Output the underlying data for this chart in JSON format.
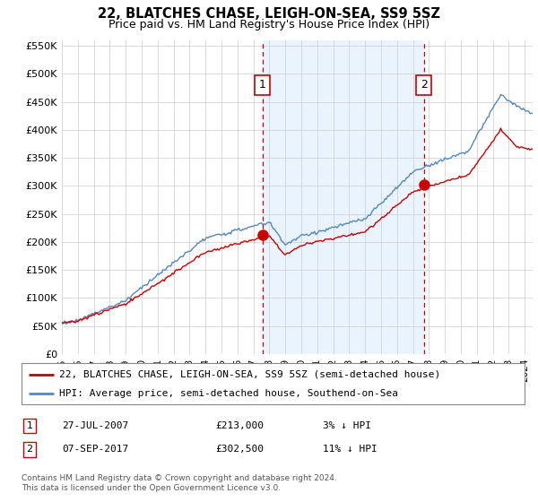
{
  "title": "22, BLATCHES CHASE, LEIGH-ON-SEA, SS9 5SZ",
  "subtitle": "Price paid vs. HM Land Registry's House Price Index (HPI)",
  "ylabel_ticks": [
    "£0",
    "£50K",
    "£100K",
    "£150K",
    "£200K",
    "£250K",
    "£300K",
    "£350K",
    "£400K",
    "£450K",
    "£500K",
    "£550K"
  ],
  "ytick_values": [
    0,
    50000,
    100000,
    150000,
    200000,
    250000,
    300000,
    350000,
    400000,
    450000,
    500000,
    550000
  ],
  "ylim": [
    0,
    560000
  ],
  "xlim_start": 1995.0,
  "xlim_end": 2024.5,
  "property_color": "#cc0000",
  "hpi_color": "#5588bb",
  "hpi_fill_color": "#ddeeff",
  "event1_x": 2007.57,
  "event1_y": 213000,
  "event1_label": "1",
  "event1_date": "27-JUL-2007",
  "event1_price": "£213,000",
  "event1_note": "3% ↓ HPI",
  "event2_x": 2017.69,
  "event2_y": 302500,
  "event2_label": "2",
  "event2_date": "07-SEP-2017",
  "event2_price": "£302,500",
  "event2_note": "11% ↓ HPI",
  "legend_property": "22, BLATCHES CHASE, LEIGH-ON-SEA, SS9 5SZ (semi-detached house)",
  "legend_hpi": "HPI: Average price, semi-detached house, Southend-on-Sea",
  "footer": "Contains HM Land Registry data © Crown copyright and database right 2024.\nThis data is licensed under the Open Government Licence v3.0.",
  "background_color": "#ffffff",
  "grid_color": "#cccccc",
  "marker_size": 8
}
